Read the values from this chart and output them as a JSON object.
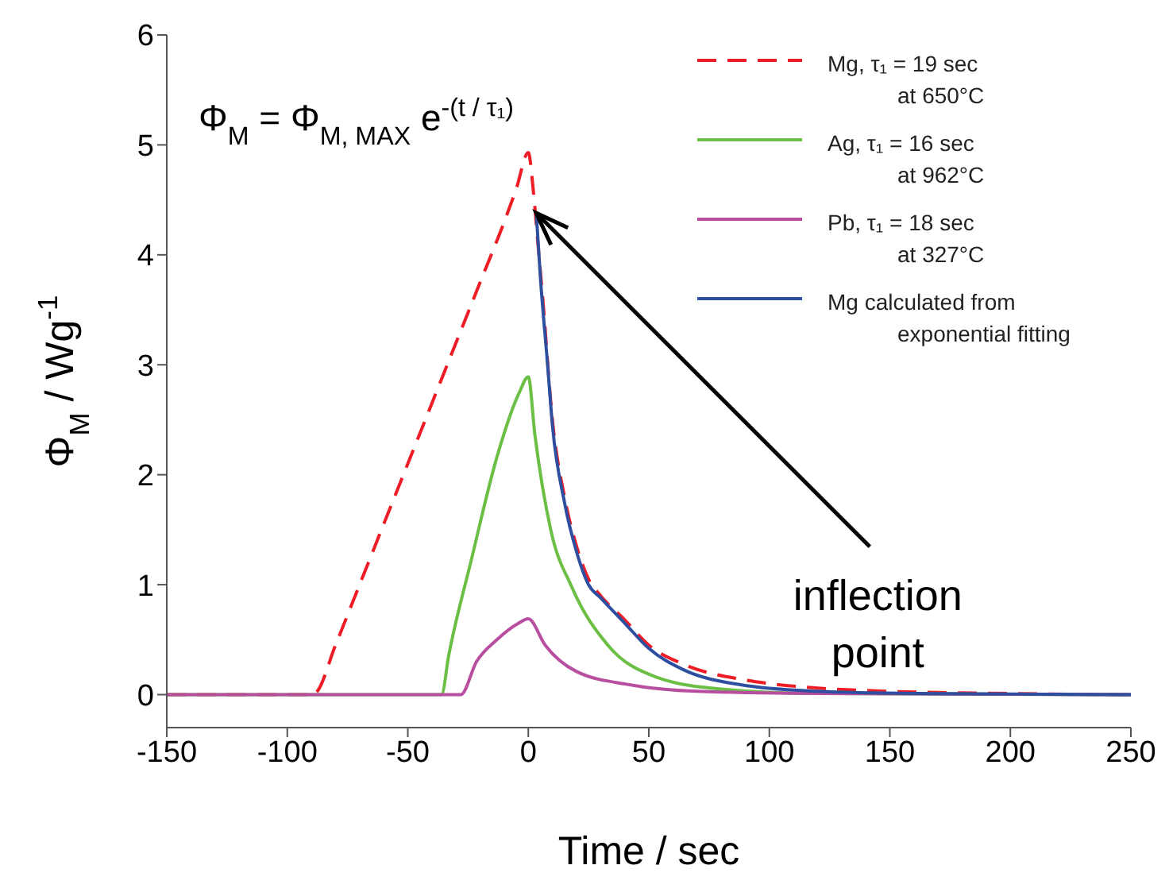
{
  "chart_data": {
    "type": "line",
    "xlabel": "Time / sec",
    "ylabel": "Φ$_{M}$ / Wg$^{-1}$",
    "xlim": [
      -150,
      250
    ],
    "xticks": [
      -150,
      -100,
      -50,
      0,
      50,
      100,
      150,
      200,
      250
    ],
    "ylim": [
      -0.3,
      6
    ],
    "yticks": [
      0,
      1,
      2,
      3,
      4,
      5,
      6
    ],
    "grid": false,
    "legend": "top right",
    "marker": "none",
    "annotations": [
      "Φ$_{M}$ = Φ$_{M, MAX}$  e$^{-(t / τ₁)}$",
      {
        "text": "inflection point",
        "x": 3.3,
        "y": 4.38
      }
    ],
    "series": [
      {
        "name": "Mg, τ₁ = 19 sec\nat 650°C",
        "color": "#ee1c25",
        "line_style": "dashed",
        "x": [
          -150,
          -90,
          -88,
          -80,
          -70,
          -60,
          -50,
          -40,
          -30,
          -20,
          -10,
          -5,
          0,
          2,
          4,
          6,
          10,
          15,
          20,
          25,
          30,
          40,
          50,
          64,
          88,
          100,
          120,
          150,
          200,
          250
        ],
        "values": [
          0,
          0,
          0.02,
          0.45,
          1.0,
          1.55,
          2.1,
          2.65,
          3.2,
          3.75,
          4.3,
          4.6,
          4.93,
          4.6,
          4.1,
          3.6,
          2.5,
          1.8,
          1.35,
          1.05,
          0.9,
          0.68,
          0.45,
          0.28,
          0.14,
          0.1,
          0.06,
          0.03,
          0.01,
          0
        ]
      },
      {
        "name": "Ag, τ₁ = 16 sec\nat 962°C",
        "color": "#6cbf45",
        "line_style": "solid",
        "x": [
          -150,
          -36,
          -33,
          -23.7,
          -12.9,
          -3.9,
          0,
          2.7,
          9.3,
          18,
          33,
          53,
          80,
          120,
          250
        ],
        "values": [
          0,
          0,
          0.36,
          1.22,
          2.17,
          2.74,
          2.89,
          2.37,
          1.5,
          0.98,
          0.45,
          0.16,
          0.05,
          0.01,
          0
        ]
      },
      {
        "name": "Pb, τ₁ = 18 sec\nat 327°C",
        "color": "#b84ea0",
        "line_style": "solid",
        "x": [
          -150,
          -28,
          -21.5,
          -13,
          -4,
          0,
          7,
          20,
          42,
          70,
          120,
          250
        ],
        "values": [
          0,
          0,
          0.3,
          0.5,
          0.65,
          0.69,
          0.45,
          0.21,
          0.09,
          0.03,
          0.01,
          0
        ]
      },
      {
        "name": "Mg calculated from\nexponential fitting",
        "color": "#2e4fa0",
        "line_style": "solid",
        "x": [
          3.3,
          5,
          8,
          10,
          15,
          20,
          25,
          30,
          40,
          50,
          64,
          88,
          120,
          160,
          250
        ],
        "values": [
          4.38,
          3.8,
          3.0,
          2.45,
          1.75,
          1.3,
          1.0,
          0.88,
          0.65,
          0.42,
          0.23,
          0.09,
          0.03,
          0.01,
          0
        ]
      }
    ]
  }
}
